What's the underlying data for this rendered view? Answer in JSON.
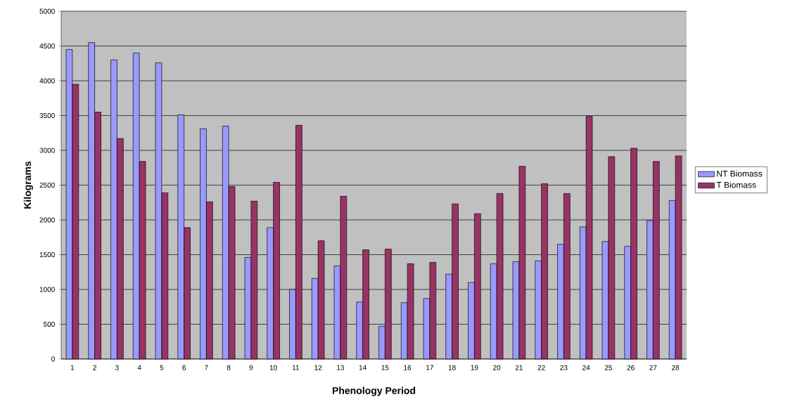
{
  "chart_data": {
    "type": "bar",
    "xlabel": "Phenology Period",
    "ylabel": "Kilograms",
    "categories": [
      "1",
      "2",
      "3",
      "4",
      "5",
      "6",
      "7",
      "8",
      "9",
      "10",
      "11",
      "12",
      "13",
      "14",
      "15",
      "16",
      "17",
      "18",
      "19",
      "20",
      "21",
      "22",
      "23",
      "24",
      "25",
      "26",
      "27",
      "28"
    ],
    "series": [
      {
        "name": "NT Biomass",
        "color": "#9999ff",
        "values": [
          4450,
          4550,
          4300,
          4400,
          4260,
          3510,
          3310,
          3350,
          1460,
          1890,
          1000,
          1160,
          1340,
          820,
          470,
          810,
          870,
          1220,
          1100,
          1370,
          1400,
          1410,
          1650,
          1900,
          1690,
          1620,
          1990,
          2280
        ]
      },
      {
        "name": "T Biomass",
        "color": "#993366",
        "values": [
          3950,
          3550,
          3170,
          2840,
          2390,
          1890,
          2260,
          2480,
          2270,
          2540,
          3360,
          1700,
          2340,
          1570,
          1580,
          1370,
          1390,
          2230,
          2090,
          2380,
          2770,
          2520,
          2380,
          3490,
          2910,
          3030,
          2840,
          2920
        ]
      }
    ],
    "ylim": [
      0,
      5000
    ],
    "yticks": [
      0,
      500,
      1000,
      1500,
      2000,
      2500,
      3000,
      3500,
      4000,
      4500,
      5000
    ],
    "grid": "y",
    "legend": "right"
  }
}
